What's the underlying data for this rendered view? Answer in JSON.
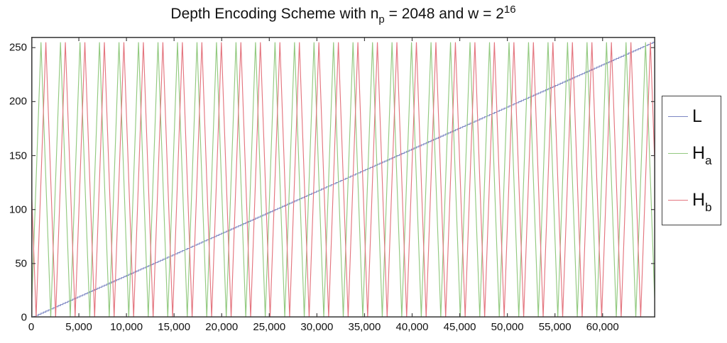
{
  "title": {
    "pre": "Depth Encoding Scheme with n",
    "sub": "p",
    "mid": " = 2048 and w = 2",
    "sup": "16"
  },
  "legend": {
    "items": [
      {
        "main": "L",
        "sub": "",
        "color": "#7d87c3"
      },
      {
        "main": "H",
        "sub": "a",
        "color": "#92c97f"
      },
      {
        "main": "H",
        "sub": "b",
        "color": "#e4757f"
      }
    ]
  },
  "chart_data": {
    "type": "line",
    "title": "Depth Encoding Scheme with n_p = 2048 and w = 2^16",
    "xlabel": "",
    "ylabel": "",
    "xlim": [
      0,
      65536
    ],
    "ylim": [
      0,
      260
    ],
    "grid": false,
    "legend_position": "outside-right",
    "axis_color": "#404040",
    "x_ticks": {
      "values": [
        0,
        5000,
        10000,
        15000,
        20000,
        25000,
        30000,
        35000,
        40000,
        45000,
        50000,
        55000,
        60000
      ],
      "labels": [
        "0",
        "5,000",
        "10,000",
        "15,000",
        "20,000",
        "25,000",
        "30,000",
        "35,000",
        "40,000",
        "45,000",
        "50,000",
        "55,000",
        "60,000"
      ]
    },
    "y_ticks": {
      "values": [
        0,
        50,
        100,
        150,
        200,
        250
      ],
      "labels": [
        "0",
        "50",
        "100",
        "150",
        "200",
        "250"
      ]
    },
    "series": [
      {
        "name": "L",
        "color": "#7d87c3",
        "kind": "quantized-ramp",
        "description": "8-bit linear depth ramp L(d)=floor(d/256); rises 0 to 255 across x range as a fine staircase",
        "step": 256,
        "max_value": 255
      },
      {
        "name": "H_a",
        "color": "#92c97f",
        "kind": "triangle",
        "description": "High-frequency triangle wave, amplitude 0-255, period 2048 (32 periods over range), H_a(0)=0, first peak at d=1024",
        "period": 2048,
        "phase_shift": 0,
        "amplitude": 255,
        "sample_step": 32
      },
      {
        "name": "H_b",
        "color": "#e4757f",
        "kind": "triangle",
        "description": "Triangle wave identical to H_a but phase-shifted by 512 (quarter period); H_b(0)=127.5 falling, min at d=512, first peak at d=1536, ends near 128 at right edge",
        "period": 2048,
        "phase_shift": 512,
        "amplitude": 255,
        "sample_step": 32
      }
    ]
  }
}
